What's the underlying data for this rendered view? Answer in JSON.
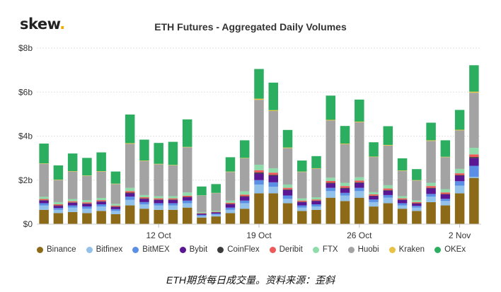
{
  "logo": {
    "text": "skew",
    "dot": "."
  },
  "caption": "ETH期货每日成交量。资料来源：歪斜",
  "chart_data": {
    "type": "bar",
    "stacked": true,
    "title": "ETH Futures - Aggregated Daily Volumes",
    "xlabel": "",
    "ylabel": "",
    "ylim": [
      0,
      8
    ],
    "yticks": [
      0,
      2,
      4,
      6,
      8
    ],
    "ytick_labels": [
      "$0",
      "$2b",
      "$4b",
      "$6b",
      "$8b"
    ],
    "x_tick_labels": [
      {
        "label": "12 Oct",
        "index": 8
      },
      {
        "label": "19 Oct",
        "index": 15
      },
      {
        "label": "26 Oct",
        "index": 22
      },
      {
        "label": "2 Nov",
        "index": 29
      }
    ],
    "grid": true,
    "legend_position": "bottom",
    "series": [
      {
        "name": "Binance",
        "color": "#8c6a17",
        "values": [
          0.65,
          0.5,
          0.55,
          0.5,
          0.6,
          0.45,
          0.85,
          0.7,
          0.65,
          0.65,
          0.75,
          0.3,
          0.35,
          0.5,
          0.7,
          1.4,
          1.4,
          0.95,
          0.6,
          0.65,
          1.2,
          1.05,
          1.2,
          0.8,
          0.95,
          0.7,
          0.6,
          1.0,
          0.85,
          1.4,
          2.1
        ]
      },
      {
        "name": "Bitfinex",
        "color": "#92c2ea",
        "values": [
          0.2,
          0.15,
          0.2,
          0.2,
          0.2,
          0.15,
          0.25,
          0.2,
          0.2,
          0.2,
          0.2,
          0.07,
          0.08,
          0.15,
          0.25,
          0.4,
          0.3,
          0.2,
          0.15,
          0.15,
          0.3,
          0.25,
          0.3,
          0.2,
          0.25,
          0.15,
          0.15,
          0.25,
          0.2,
          0.35,
          0.05
        ]
      },
      {
        "name": "BitMEX",
        "color": "#5b8fe6",
        "values": [
          0.1,
          0.08,
          0.1,
          0.1,
          0.1,
          0.08,
          0.15,
          0.1,
          0.1,
          0.1,
          0.12,
          0.05,
          0.05,
          0.1,
          0.12,
          0.2,
          0.2,
          0.15,
          0.1,
          0.1,
          0.15,
          0.12,
          0.15,
          0.12,
          0.12,
          0.1,
          0.08,
          0.12,
          0.1,
          0.2,
          0.5
        ]
      },
      {
        "name": "Bybit",
        "color": "#5b1693",
        "values": [
          0.12,
          0.1,
          0.12,
          0.12,
          0.12,
          0.1,
          0.15,
          0.15,
          0.15,
          0.15,
          0.15,
          0.05,
          0.05,
          0.15,
          0.18,
          0.3,
          0.3,
          0.25,
          0.15,
          0.15,
          0.2,
          0.2,
          0.22,
          0.15,
          0.2,
          0.15,
          0.1,
          0.25,
          0.2,
          0.25,
          0.35
        ]
      },
      {
        "name": "CoinFlex",
        "color": "#3b3b3b",
        "values": [
          0.02,
          0.02,
          0.02,
          0.02,
          0.02,
          0.02,
          0.03,
          0.02,
          0.02,
          0.02,
          0.02,
          0.01,
          0.01,
          0.02,
          0.02,
          0.05,
          0.04,
          0.03,
          0.02,
          0.02,
          0.03,
          0.03,
          0.03,
          0.02,
          0.03,
          0.02,
          0.02,
          0.03,
          0.02,
          0.03,
          0.05
        ]
      },
      {
        "name": "Deribit",
        "color": "#ee5a5a",
        "values": [
          0.05,
          0.05,
          0.05,
          0.05,
          0.05,
          0.04,
          0.07,
          0.05,
          0.05,
          0.05,
          0.05,
          0.02,
          0.02,
          0.05,
          0.07,
          0.1,
          0.1,
          0.07,
          0.05,
          0.05,
          0.08,
          0.08,
          0.08,
          0.06,
          0.07,
          0.05,
          0.05,
          0.08,
          0.07,
          0.08,
          0.12
        ]
      },
      {
        "name": "FTX",
        "color": "#8fdcaa",
        "values": [
          0.1,
          0.1,
          0.1,
          0.1,
          0.1,
          0.08,
          0.15,
          0.1,
          0.1,
          0.1,
          0.15,
          0.05,
          0.05,
          0.1,
          0.15,
          0.25,
          0.2,
          0.15,
          0.1,
          0.1,
          0.15,
          0.15,
          0.15,
          0.1,
          0.15,
          0.1,
          0.08,
          0.15,
          0.15,
          0.2,
          0.3
        ]
      },
      {
        "name": "Huobi",
        "color": "#a3a3a3",
        "values": [
          1.5,
          1.0,
          1.25,
          1.1,
          1.2,
          0.9,
          2.0,
          1.55,
          1.45,
          1.4,
          2.05,
          0.75,
          0.8,
          1.3,
          1.5,
          2.95,
          2.6,
          1.65,
          1.2,
          1.3,
          2.6,
          1.75,
          2.5,
          1.6,
          1.8,
          1.15,
          0.9,
          1.9,
          1.45,
          1.75,
          2.5
        ]
      },
      {
        "name": "Kraken",
        "color": "#e7c244",
        "values": [
          0.02,
          0.02,
          0.02,
          0.02,
          0.02,
          0.02,
          0.03,
          0.02,
          0.02,
          0.02,
          0.02,
          0.01,
          0.01,
          0.02,
          0.02,
          0.05,
          0.04,
          0.03,
          0.02,
          0.02,
          0.03,
          0.03,
          0.03,
          0.02,
          0.03,
          0.02,
          0.02,
          0.03,
          0.02,
          0.03,
          0.05
        ]
      },
      {
        "name": "OKEx",
        "color": "#2cae61",
        "values": [
          0.9,
          0.65,
          0.8,
          0.8,
          0.85,
          0.55,
          1.3,
          0.95,
          0.95,
          1.05,
          1.25,
          0.4,
          0.4,
          0.65,
          0.8,
          1.35,
          1.25,
          0.8,
          0.5,
          0.55,
          1.1,
          0.8,
          1.0,
          0.65,
          0.85,
          0.55,
          0.5,
          0.8,
          0.75,
          0.9,
          1.2
        ]
      }
    ]
  }
}
